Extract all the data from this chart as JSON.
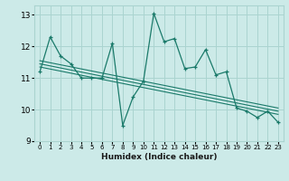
{
  "xlabel": "Humidex (Indice chaleur)",
  "ylabel": "",
  "background_color": "#cceae8",
  "grid_color": "#aad4d0",
  "line_color": "#1a7a6a",
  "xlim": [
    -0.5,
    23.5
  ],
  "ylim": [
    9.0,
    13.3
  ],
  "yticks": [
    9,
    10,
    11,
    12,
    13
  ],
  "xticks": [
    0,
    1,
    2,
    3,
    4,
    5,
    6,
    7,
    8,
    9,
    10,
    11,
    12,
    13,
    14,
    15,
    16,
    17,
    18,
    19,
    20,
    21,
    22,
    23
  ],
  "main_series": [
    [
      0,
      11.2
    ],
    [
      1,
      12.3
    ],
    [
      2,
      11.7
    ],
    [
      3,
      11.45
    ],
    [
      4,
      11.0
    ],
    [
      5,
      11.0
    ],
    [
      6,
      11.0
    ],
    [
      7,
      12.1
    ],
    [
      8,
      9.5
    ],
    [
      9,
      10.4
    ],
    [
      10,
      10.9
    ],
    [
      11,
      13.05
    ],
    [
      12,
      12.15
    ],
    [
      13,
      12.25
    ],
    [
      14,
      11.3
    ],
    [
      15,
      11.35
    ],
    [
      16,
      11.9
    ],
    [
      17,
      11.1
    ],
    [
      18,
      11.2
    ],
    [
      19,
      10.05
    ],
    [
      20,
      9.95
    ],
    [
      21,
      9.75
    ],
    [
      22,
      9.95
    ],
    [
      23,
      9.6
    ]
  ],
  "trend_lines": [
    [
      [
        0,
        11.55
      ],
      [
        23,
        10.05
      ]
    ],
    [
      [
        0,
        11.45
      ],
      [
        23,
        9.95
      ]
    ],
    [
      [
        0,
        11.35
      ],
      [
        23,
        9.85
      ]
    ]
  ]
}
